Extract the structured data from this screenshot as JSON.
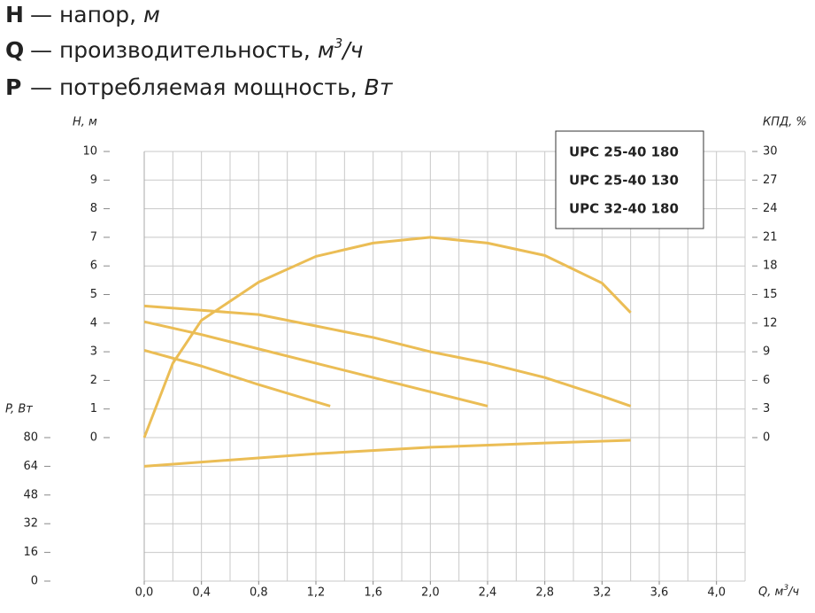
{
  "chart_data": {
    "type": "line",
    "header": [
      {
        "symbol": "H",
        "text": "— напор,",
        "unit": [
          "м"
        ]
      },
      {
        "symbol": "Q",
        "text": "— производительность,",
        "unit": [
          "м",
          "3",
          "/ч"
        ]
      },
      {
        "symbol": "P",
        "text": "— потребляемая мощность,",
        "unit": [
          "Вт"
        ]
      }
    ],
    "xlabel": [
      "Q, м",
      "3",
      "/ч"
    ],
    "ylabel": "H, м",
    "y2label": "КПД, %",
    "y3label": "P, Вт",
    "xlim": [
      0,
      4.2
    ],
    "xticks": [
      {
        "value": 0,
        "label": "0,0"
      },
      {
        "value": 0.4,
        "label": "0,4"
      },
      {
        "value": 0.8,
        "label": "0,8"
      },
      {
        "value": 1.2,
        "label": "1,2"
      },
      {
        "value": 1.6,
        "label": "1,6"
      },
      {
        "value": 2.0,
        "label": "2,0"
      },
      {
        "value": 2.4,
        "label": "2,4"
      },
      {
        "value": 2.8,
        "label": "2,8"
      },
      {
        "value": 3.2,
        "label": "3,2"
      },
      {
        "value": 3.6,
        "label": "3,6"
      },
      {
        "value": 4.0,
        "label": "4,0"
      }
    ],
    "x_grid": [
      0.2,
      0.4,
      0.6,
      0.8,
      1.0,
      1.2,
      1.4,
      1.6,
      1.8,
      2.0,
      2.2,
      2.4,
      2.6,
      2.8,
      3.0,
      3.2,
      3.4,
      3.6,
      3.8,
      4.0,
      4.2
    ],
    "ylim": [
      0,
      10
    ],
    "yticks": [
      0,
      1,
      2,
      3,
      4,
      5,
      6,
      7,
      8,
      9,
      10
    ],
    "y2lim": [
      0,
      30
    ],
    "y2ticks": [
      0,
      3,
      6,
      9,
      12,
      15,
      18,
      21,
      24,
      27,
      30
    ],
    "y3lim": [
      0,
      80
    ],
    "y3ticks": [
      0,
      16,
      32,
      48,
      64,
      80
    ],
    "grid": true,
    "legend": "upper right",
    "series": [
      {
        "name": "UPC 25-40 180",
        "color": "#ebbd55",
        "x": [
          0,
          0.4,
          0.8,
          1.2,
          1.6,
          2.0,
          2.4
        ],
        "values": [
          4.05,
          3.6,
          3.1,
          2.6,
          2.1,
          1.6,
          1.1
        ]
      },
      {
        "name": "UPC 25-40 130",
        "color": "#ebbd55",
        "x": [
          0,
          0.4,
          0.8,
          1.2,
          1.3
        ],
        "values": [
          3.05,
          2.5,
          1.85,
          1.25,
          1.1
        ]
      },
      {
        "name": "UPC 32-40 180",
        "color": "#ebbd55",
        "x": [
          0,
          0.4,
          0.8,
          1.2,
          1.6,
          2.0,
          2.4,
          2.8,
          3.2,
          3.4
        ],
        "values": [
          4.6,
          4.45,
          4.3,
          3.9,
          3.5,
          3.0,
          2.6,
          2.1,
          1.45,
          1.1
        ]
      },
      {
        "color": "#ebbd55",
        "axis": "y2",
        "x": [
          0,
          0.2,
          0.4,
          0.8,
          1.2,
          1.6,
          2.0,
          2.4,
          2.8,
          3.2,
          3.4
        ],
        "values": [
          0,
          7.8,
          12.3,
          16.3,
          19,
          20.4,
          21,
          20.4,
          19.1,
          16.2,
          13.1
        ]
      },
      {
        "color": "#ebbd55",
        "axis": "y3",
        "x": [
          0,
          1.2,
          2.0,
          2.8,
          3.4
        ],
        "values": [
          64,
          71,
          74.6,
          77,
          78.5
        ]
      }
    ]
  }
}
